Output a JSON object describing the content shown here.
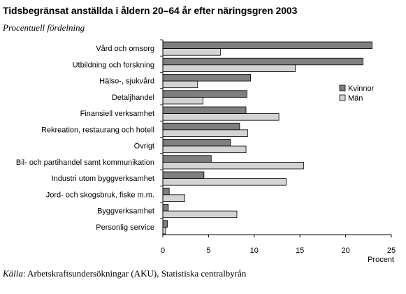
{
  "chart_data": {
    "type": "bar",
    "orientation": "horizontal",
    "title": "Tidsbegränsat anställda i åldern 20–64 år efter näringsgren 2003",
    "subtitle": "Procentuell fördelning",
    "xlabel": "Procent",
    "xlim": [
      0,
      25
    ],
    "xticks": [
      0,
      5,
      10,
      15,
      20,
      25
    ],
    "categories": [
      "Vård och omsorg",
      "Utbildning och forskning",
      "Hälso-, sjukvård",
      "Detaljhandel",
      "Finansiell verksamhet",
      "Rekreation, restaurang och hotell",
      "Övrigt",
      "Bil- och partihandel samt kommunikation",
      "Industri utom byggverksamhet",
      "Jord- och skogsbruk, fiske m.m.",
      "Byggverksamhet",
      "Personlig service"
    ],
    "series": [
      {
        "name": "Kvinnor",
        "color": "#7f7f7f",
        "values": [
          22.9,
          21.9,
          9.6,
          9.2,
          9.1,
          8.4,
          7.4,
          5.3,
          4.5,
          0.7,
          0.6,
          0.5
        ]
      },
      {
        "name": "Män",
        "color": "#d4d4d4",
        "values": [
          6.3,
          14.5,
          3.8,
          4.4,
          12.7,
          9.3,
          9.1,
          15.4,
          13.5,
          2.4,
          8.1,
          0.3
        ]
      }
    ],
    "legend_position": "right",
    "grid": false
  },
  "source": {
    "label": "Källa",
    "text": ": Arbetskraftsundersökningar (AKU), Statistiska centralbyrån"
  }
}
